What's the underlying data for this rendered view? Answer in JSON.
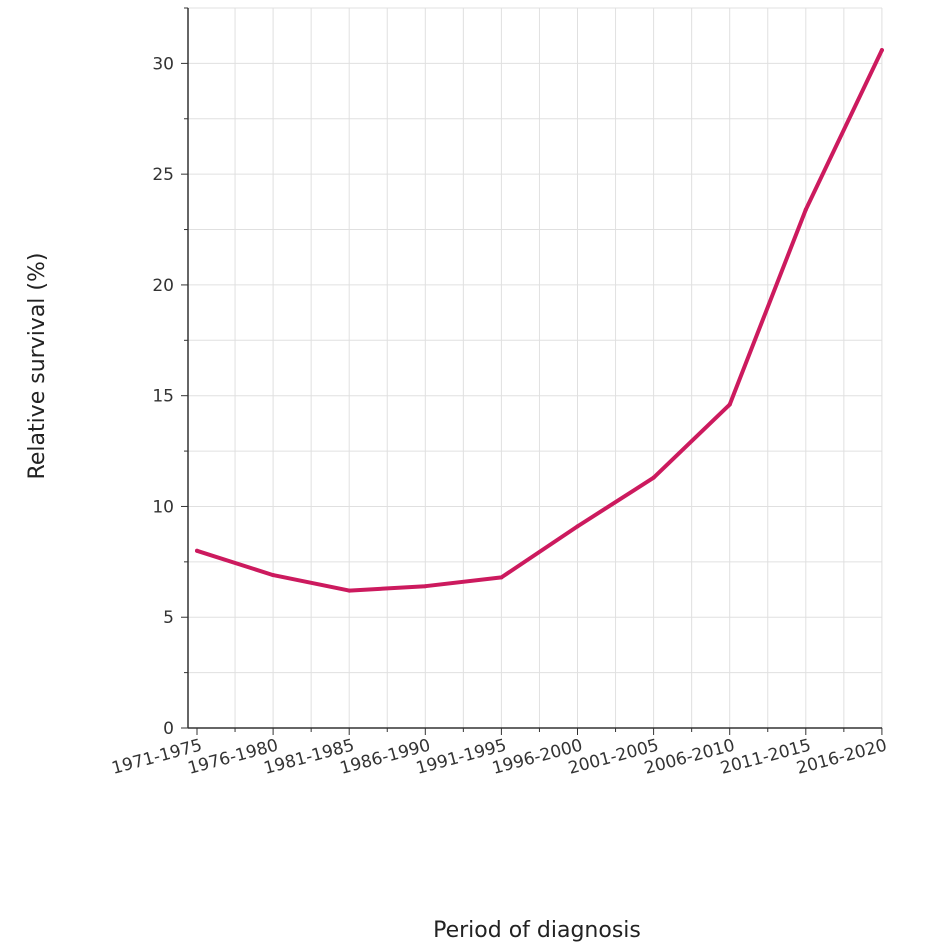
{
  "chart_data": {
    "type": "line",
    "title": "",
    "xlabel": "Period of diagnosis",
    "ylabel": "Relative survival (%)",
    "categories": [
      "1971-1975",
      "1976-1980",
      "1981-1985",
      "1986-1990",
      "1991-1995",
      "1996-2000",
      "2001-2005",
      "2006-2010",
      "2011-2015",
      "2016-2020"
    ],
    "series": [
      {
        "values": [
          8.0,
          6.9,
          6.2,
          6.4,
          6.8,
          9.1,
          11.3,
          14.6,
          23.4,
          30.6
        ],
        "color": "#cc1a5e"
      }
    ],
    "ylim": [
      0,
      32.5
    ],
    "yticks": [
      0,
      5,
      10,
      15,
      20,
      25,
      30
    ],
    "grid": true,
    "legend": "none"
  }
}
